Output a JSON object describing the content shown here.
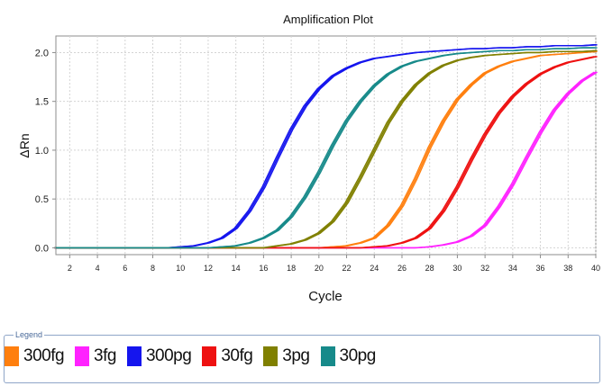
{
  "chart_data": {
    "type": "line",
    "title": "Amplification Plot",
    "xlabel": "Cycle",
    "ylabel": "ΔRn",
    "xlim": [
      1,
      40
    ],
    "ylim": [
      -0.07,
      2.17
    ],
    "xticks": [
      2,
      4,
      6,
      8,
      10,
      12,
      14,
      16,
      18,
      20,
      22,
      24,
      26,
      28,
      30,
      32,
      34,
      36,
      38,
      40
    ],
    "yticks": [
      0.0,
      0.5,
      1.0,
      1.5,
      2.0
    ],
    "ytick_labels": [
      "0.0",
      "0.5",
      "1.0",
      "1.5",
      "2.0"
    ],
    "grid": true,
    "legend_position": "bottom",
    "x": [
      1,
      2,
      3,
      4,
      5,
      6,
      7,
      8,
      9,
      10,
      11,
      12,
      13,
      14,
      15,
      16,
      17,
      18,
      19,
      20,
      21,
      22,
      23,
      24,
      25,
      26,
      27,
      28,
      29,
      30,
      31,
      32,
      33,
      34,
      35,
      36,
      37,
      38,
      39,
      40
    ],
    "series": [
      {
        "name": "300fg",
        "color": "#ff7f0e",
        "values": [
          0,
          0,
          0,
          0,
          0,
          0,
          0,
          0,
          0,
          0,
          0,
          0,
          0,
          0,
          0,
          0,
          0,
          0,
          0,
          0,
          0.01,
          0.02,
          0.05,
          0.1,
          0.23,
          0.43,
          0.71,
          1.03,
          1.3,
          1.52,
          1.67,
          1.79,
          1.86,
          1.91,
          1.94,
          1.97,
          1.98,
          1.99,
          2.0,
          2.01
        ]
      },
      {
        "name": "3fg",
        "color": "#ff22ff",
        "values": [
          0,
          0,
          0,
          0,
          0,
          0,
          0,
          0,
          0,
          0,
          0,
          0,
          0,
          0,
          0,
          0,
          0,
          0,
          0,
          0,
          0,
          0,
          0,
          0,
          0,
          0,
          0,
          0.01,
          0.03,
          0.06,
          0.12,
          0.23,
          0.42,
          0.65,
          0.92,
          1.18,
          1.41,
          1.58,
          1.71,
          1.8
        ]
      },
      {
        "name": "300pg",
        "color": "#1515ee",
        "values": [
          0,
          0,
          0,
          0,
          0,
          0,
          0,
          0,
          0,
          0.01,
          0.02,
          0.05,
          0.1,
          0.2,
          0.38,
          0.62,
          0.92,
          1.21,
          1.45,
          1.63,
          1.76,
          1.84,
          1.9,
          1.94,
          1.96,
          1.98,
          2.0,
          2.01,
          2.02,
          2.03,
          2.04,
          2.04,
          2.05,
          2.05,
          2.06,
          2.06,
          2.07,
          2.07,
          2.07,
          2.08
        ]
      },
      {
        "name": "30fg",
        "color": "#ee1111",
        "values": [
          0,
          0,
          0,
          0,
          0,
          0,
          0,
          0,
          0,
          0,
          0,
          0,
          0,
          0,
          0,
          0,
          0,
          0,
          0,
          0,
          0,
          0,
          0,
          0.01,
          0.02,
          0.05,
          0.1,
          0.2,
          0.38,
          0.62,
          0.9,
          1.16,
          1.38,
          1.55,
          1.68,
          1.78,
          1.85,
          1.9,
          1.93,
          1.96
        ]
      },
      {
        "name": "3pg",
        "color": "#808000",
        "values": [
          0,
          0,
          0,
          0,
          0,
          0,
          0,
          0,
          0,
          0,
          0,
          0,
          0,
          0,
          0,
          0,
          0.02,
          0.04,
          0.08,
          0.15,
          0.27,
          0.46,
          0.72,
          1.0,
          1.28,
          1.5,
          1.67,
          1.79,
          1.87,
          1.92,
          1.95,
          1.97,
          1.98,
          1.99,
          2.0,
          2.0,
          2.01,
          2.01,
          2.01,
          2.02
        ]
      },
      {
        "name": "30pg",
        "color": "#178a8a",
        "values": [
          0,
          0,
          0,
          0,
          0,
          0,
          0,
          0,
          0,
          0,
          0,
          0,
          0.01,
          0.02,
          0.05,
          0.1,
          0.18,
          0.32,
          0.52,
          0.77,
          1.05,
          1.3,
          1.5,
          1.66,
          1.78,
          1.86,
          1.91,
          1.94,
          1.97,
          1.99,
          2.0,
          2.01,
          2.02,
          2.02,
          2.03,
          2.03,
          2.04,
          2.04,
          2.05,
          2.05
        ]
      }
    ]
  },
  "legend": {
    "title": "Legend",
    "items": [
      {
        "label": "300fg",
        "color": "#ff7f0e"
      },
      {
        "label": "3fg",
        "color": "#ff22ff"
      },
      {
        "label": "300pg",
        "color": "#1515ee"
      },
      {
        "label": "30fg",
        "color": "#ee1111"
      },
      {
        "label": "3pg",
        "color": "#808000"
      },
      {
        "label": "30pg",
        "color": "#178a8a"
      }
    ]
  }
}
